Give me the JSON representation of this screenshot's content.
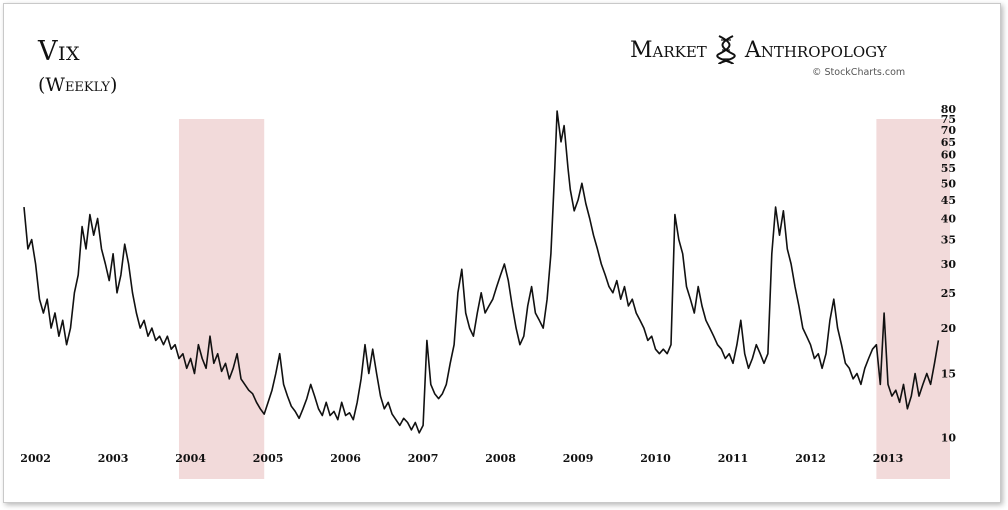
{
  "header": {
    "title": "Vix",
    "subtitle": "(Weekly)",
    "brand_left": "Market",
    "brand_right": "Anthropology",
    "brand_icon": "dna-helix-icon",
    "credit": "© StockCharts.com"
  },
  "chart_data": {
    "type": "line",
    "scale": "log",
    "title": "Vix",
    "subtitle": "(Weekly)",
    "xlabel": "",
    "ylabel": "",
    "xlim": [
      2001.95,
      2013.9
    ],
    "ylim": [
      8.9,
      80
    ],
    "grid": false,
    "line_color": "#111111",
    "highlight_color": "#f2dada",
    "x_ticks": [
      "2002",
      "2003",
      "2004",
      "2005",
      "2006",
      "2007",
      "2008",
      "2009",
      "2010",
      "2011",
      "2012",
      "2013"
    ],
    "y_ticks": [
      80,
      75,
      70,
      65,
      60,
      55,
      50,
      45,
      40,
      35,
      30,
      25,
      20,
      15,
      10
    ],
    "highlights": [
      [
        2003.95,
        2005.05
      ],
      [
        2012.95,
        2013.9
      ]
    ],
    "series": [
      {
        "values": [
          [
            2001.95,
            43
          ],
          [
            2002.0,
            33
          ],
          [
            2002.05,
            35
          ],
          [
            2002.1,
            30
          ],
          [
            2002.15,
            24
          ],
          [
            2002.2,
            22
          ],
          [
            2002.25,
            24
          ],
          [
            2002.3,
            20
          ],
          [
            2002.35,
            22
          ],
          [
            2002.4,
            19
          ],
          [
            2002.45,
            21
          ],
          [
            2002.5,
            18
          ],
          [
            2002.55,
            20
          ],
          [
            2002.6,
            25
          ],
          [
            2002.65,
            28
          ],
          [
            2002.7,
            38
          ],
          [
            2002.75,
            33
          ],
          [
            2002.8,
            41
          ],
          [
            2002.85,
            36
          ],
          [
            2002.9,
            40
          ],
          [
            2002.95,
            33
          ],
          [
            2003.0,
            30
          ],
          [
            2003.05,
            27
          ],
          [
            2003.1,
            32
          ],
          [
            2003.15,
            25
          ],
          [
            2003.2,
            28
          ],
          [
            2003.25,
            34
          ],
          [
            2003.3,
            30
          ],
          [
            2003.35,
            25
          ],
          [
            2003.4,
            22
          ],
          [
            2003.45,
            20
          ],
          [
            2003.5,
            21
          ],
          [
            2003.55,
            19
          ],
          [
            2003.6,
            20
          ],
          [
            2003.65,
            18.5
          ],
          [
            2003.7,
            19
          ],
          [
            2003.75,
            18
          ],
          [
            2003.8,
            19
          ],
          [
            2003.85,
            17.5
          ],
          [
            2003.9,
            18
          ],
          [
            2003.95,
            16.5
          ],
          [
            2004.0,
            17
          ],
          [
            2004.05,
            15.5
          ],
          [
            2004.1,
            16.5
          ],
          [
            2004.15,
            15
          ],
          [
            2004.2,
            18
          ],
          [
            2004.25,
            16.5
          ],
          [
            2004.3,
            15.5
          ],
          [
            2004.35,
            19
          ],
          [
            2004.4,
            16
          ],
          [
            2004.45,
            17
          ],
          [
            2004.5,
            15.2
          ],
          [
            2004.55,
            16
          ],
          [
            2004.6,
            14.5
          ],
          [
            2004.65,
            15.5
          ],
          [
            2004.7,
            17
          ],
          [
            2004.75,
            14.5
          ],
          [
            2004.8,
            14
          ],
          [
            2004.85,
            13.5
          ],
          [
            2004.9,
            13.2
          ],
          [
            2004.95,
            12.5
          ],
          [
            2005.0,
            12
          ],
          [
            2005.05,
            11.6
          ],
          [
            2005.1,
            12.5
          ],
          [
            2005.15,
            13.5
          ],
          [
            2005.2,
            15
          ],
          [
            2005.25,
            17
          ],
          [
            2005.3,
            14
          ],
          [
            2005.35,
            13
          ],
          [
            2005.4,
            12.2
          ],
          [
            2005.45,
            11.8
          ],
          [
            2005.5,
            11.3
          ],
          [
            2005.55,
            12
          ],
          [
            2005.6,
            12.8
          ],
          [
            2005.65,
            14
          ],
          [
            2005.7,
            13
          ],
          [
            2005.75,
            12
          ],
          [
            2005.8,
            11.5
          ],
          [
            2005.85,
            12.5
          ],
          [
            2005.9,
            11.5
          ],
          [
            2005.95,
            11.8
          ],
          [
            2006.0,
            11.2
          ],
          [
            2006.05,
            12.5
          ],
          [
            2006.1,
            11.5
          ],
          [
            2006.15,
            11.7
          ],
          [
            2006.2,
            11.2
          ],
          [
            2006.25,
            12.5
          ],
          [
            2006.3,
            14.5
          ],
          [
            2006.35,
            18
          ],
          [
            2006.4,
            15
          ],
          [
            2006.45,
            17.5
          ],
          [
            2006.5,
            15
          ],
          [
            2006.55,
            13
          ],
          [
            2006.6,
            12
          ],
          [
            2006.65,
            12.5
          ],
          [
            2006.7,
            11.6
          ],
          [
            2006.75,
            11.2
          ],
          [
            2006.8,
            10.8
          ],
          [
            2006.85,
            11.3
          ],
          [
            2006.9,
            11
          ],
          [
            2006.95,
            10.5
          ],
          [
            2007.0,
            11
          ],
          [
            2007.05,
            10.3
          ],
          [
            2007.1,
            10.8
          ],
          [
            2007.15,
            18.5
          ],
          [
            2007.2,
            14
          ],
          [
            2007.25,
            13.2
          ],
          [
            2007.3,
            12.8
          ],
          [
            2007.35,
            13.2
          ],
          [
            2007.4,
            14
          ],
          [
            2007.45,
            16
          ],
          [
            2007.5,
            18
          ],
          [
            2007.55,
            25
          ],
          [
            2007.6,
            29
          ],
          [
            2007.65,
            22
          ],
          [
            2007.7,
            20
          ],
          [
            2007.75,
            19
          ],
          [
            2007.8,
            22
          ],
          [
            2007.85,
            25
          ],
          [
            2007.9,
            22
          ],
          [
            2007.95,
            23
          ],
          [
            2008.0,
            24
          ],
          [
            2008.05,
            26
          ],
          [
            2008.1,
            28
          ],
          [
            2008.15,
            30
          ],
          [
            2008.2,
            27
          ],
          [
            2008.25,
            23
          ],
          [
            2008.3,
            20
          ],
          [
            2008.35,
            18
          ],
          [
            2008.4,
            19
          ],
          [
            2008.45,
            23
          ],
          [
            2008.5,
            26
          ],
          [
            2008.55,
            22
          ],
          [
            2008.6,
            21
          ],
          [
            2008.65,
            20
          ],
          [
            2008.7,
            24
          ],
          [
            2008.75,
            32
          ],
          [
            2008.8,
            55
          ],
          [
            2008.83,
            79
          ],
          [
            2008.88,
            65
          ],
          [
            2008.92,
            72
          ],
          [
            2008.97,
            55
          ],
          [
            2009.0,
            48
          ],
          [
            2009.05,
            42
          ],
          [
            2009.1,
            45
          ],
          [
            2009.15,
            50
          ],
          [
            2009.2,
            44
          ],
          [
            2009.25,
            40
          ],
          [
            2009.3,
            36
          ],
          [
            2009.35,
            33
          ],
          [
            2009.4,
            30
          ],
          [
            2009.45,
            28
          ],
          [
            2009.5,
            26
          ],
          [
            2009.55,
            25
          ],
          [
            2009.6,
            27
          ],
          [
            2009.65,
            24
          ],
          [
            2009.7,
            26
          ],
          [
            2009.75,
            23
          ],
          [
            2009.8,
            24
          ],
          [
            2009.85,
            22
          ],
          [
            2009.9,
            21
          ],
          [
            2009.95,
            20
          ],
          [
            2010.0,
            18.5
          ],
          [
            2010.05,
            19
          ],
          [
            2010.1,
            17.5
          ],
          [
            2010.15,
            17
          ],
          [
            2010.2,
            17.5
          ],
          [
            2010.25,
            17
          ],
          [
            2010.3,
            18
          ],
          [
            2010.35,
            41
          ],
          [
            2010.4,
            35
          ],
          [
            2010.45,
            32
          ],
          [
            2010.5,
            26
          ],
          [
            2010.55,
            24
          ],
          [
            2010.6,
            22
          ],
          [
            2010.65,
            26
          ],
          [
            2010.7,
            23
          ],
          [
            2010.75,
            21
          ],
          [
            2010.8,
            20
          ],
          [
            2010.85,
            19
          ],
          [
            2010.9,
            18
          ],
          [
            2010.95,
            17.5
          ],
          [
            2011.0,
            16.5
          ],
          [
            2011.05,
            17
          ],
          [
            2011.1,
            16
          ],
          [
            2011.15,
            18
          ],
          [
            2011.2,
            21
          ],
          [
            2011.25,
            17
          ],
          [
            2011.3,
            15.5
          ],
          [
            2011.35,
            16.5
          ],
          [
            2011.4,
            18
          ],
          [
            2011.45,
            17
          ],
          [
            2011.5,
            16
          ],
          [
            2011.55,
            17
          ],
          [
            2011.6,
            32
          ],
          [
            2011.65,
            43
          ],
          [
            2011.7,
            36
          ],
          [
            2011.75,
            42
          ],
          [
            2011.8,
            33
          ],
          [
            2011.85,
            30
          ],
          [
            2011.9,
            26
          ],
          [
            2011.95,
            23
          ],
          [
            2012.0,
            20
          ],
          [
            2012.05,
            19
          ],
          [
            2012.1,
            18
          ],
          [
            2012.15,
            16.5
          ],
          [
            2012.2,
            17
          ],
          [
            2012.25,
            15.5
          ],
          [
            2012.3,
            17
          ],
          [
            2012.35,
            21
          ],
          [
            2012.4,
            24
          ],
          [
            2012.45,
            20
          ],
          [
            2012.5,
            18
          ],
          [
            2012.55,
            16
          ],
          [
            2012.6,
            15.5
          ],
          [
            2012.65,
            14.5
          ],
          [
            2012.7,
            15
          ],
          [
            2012.75,
            14
          ],
          [
            2012.8,
            15.5
          ],
          [
            2012.85,
            16.5
          ],
          [
            2012.9,
            17.5
          ],
          [
            2012.95,
            18
          ],
          [
            2013.0,
            14
          ],
          [
            2013.05,
            22
          ],
          [
            2013.1,
            14
          ],
          [
            2013.15,
            13
          ],
          [
            2013.2,
            13.5
          ],
          [
            2013.25,
            12.5
          ],
          [
            2013.3,
            14
          ],
          [
            2013.35,
            12
          ],
          [
            2013.4,
            13
          ],
          [
            2013.45,
            15
          ],
          [
            2013.5,
            13
          ],
          [
            2013.55,
            14
          ],
          [
            2013.6,
            15
          ],
          [
            2013.65,
            14
          ],
          [
            2013.7,
            16
          ],
          [
            2013.75,
            18.5
          ]
        ]
      }
    ]
  }
}
